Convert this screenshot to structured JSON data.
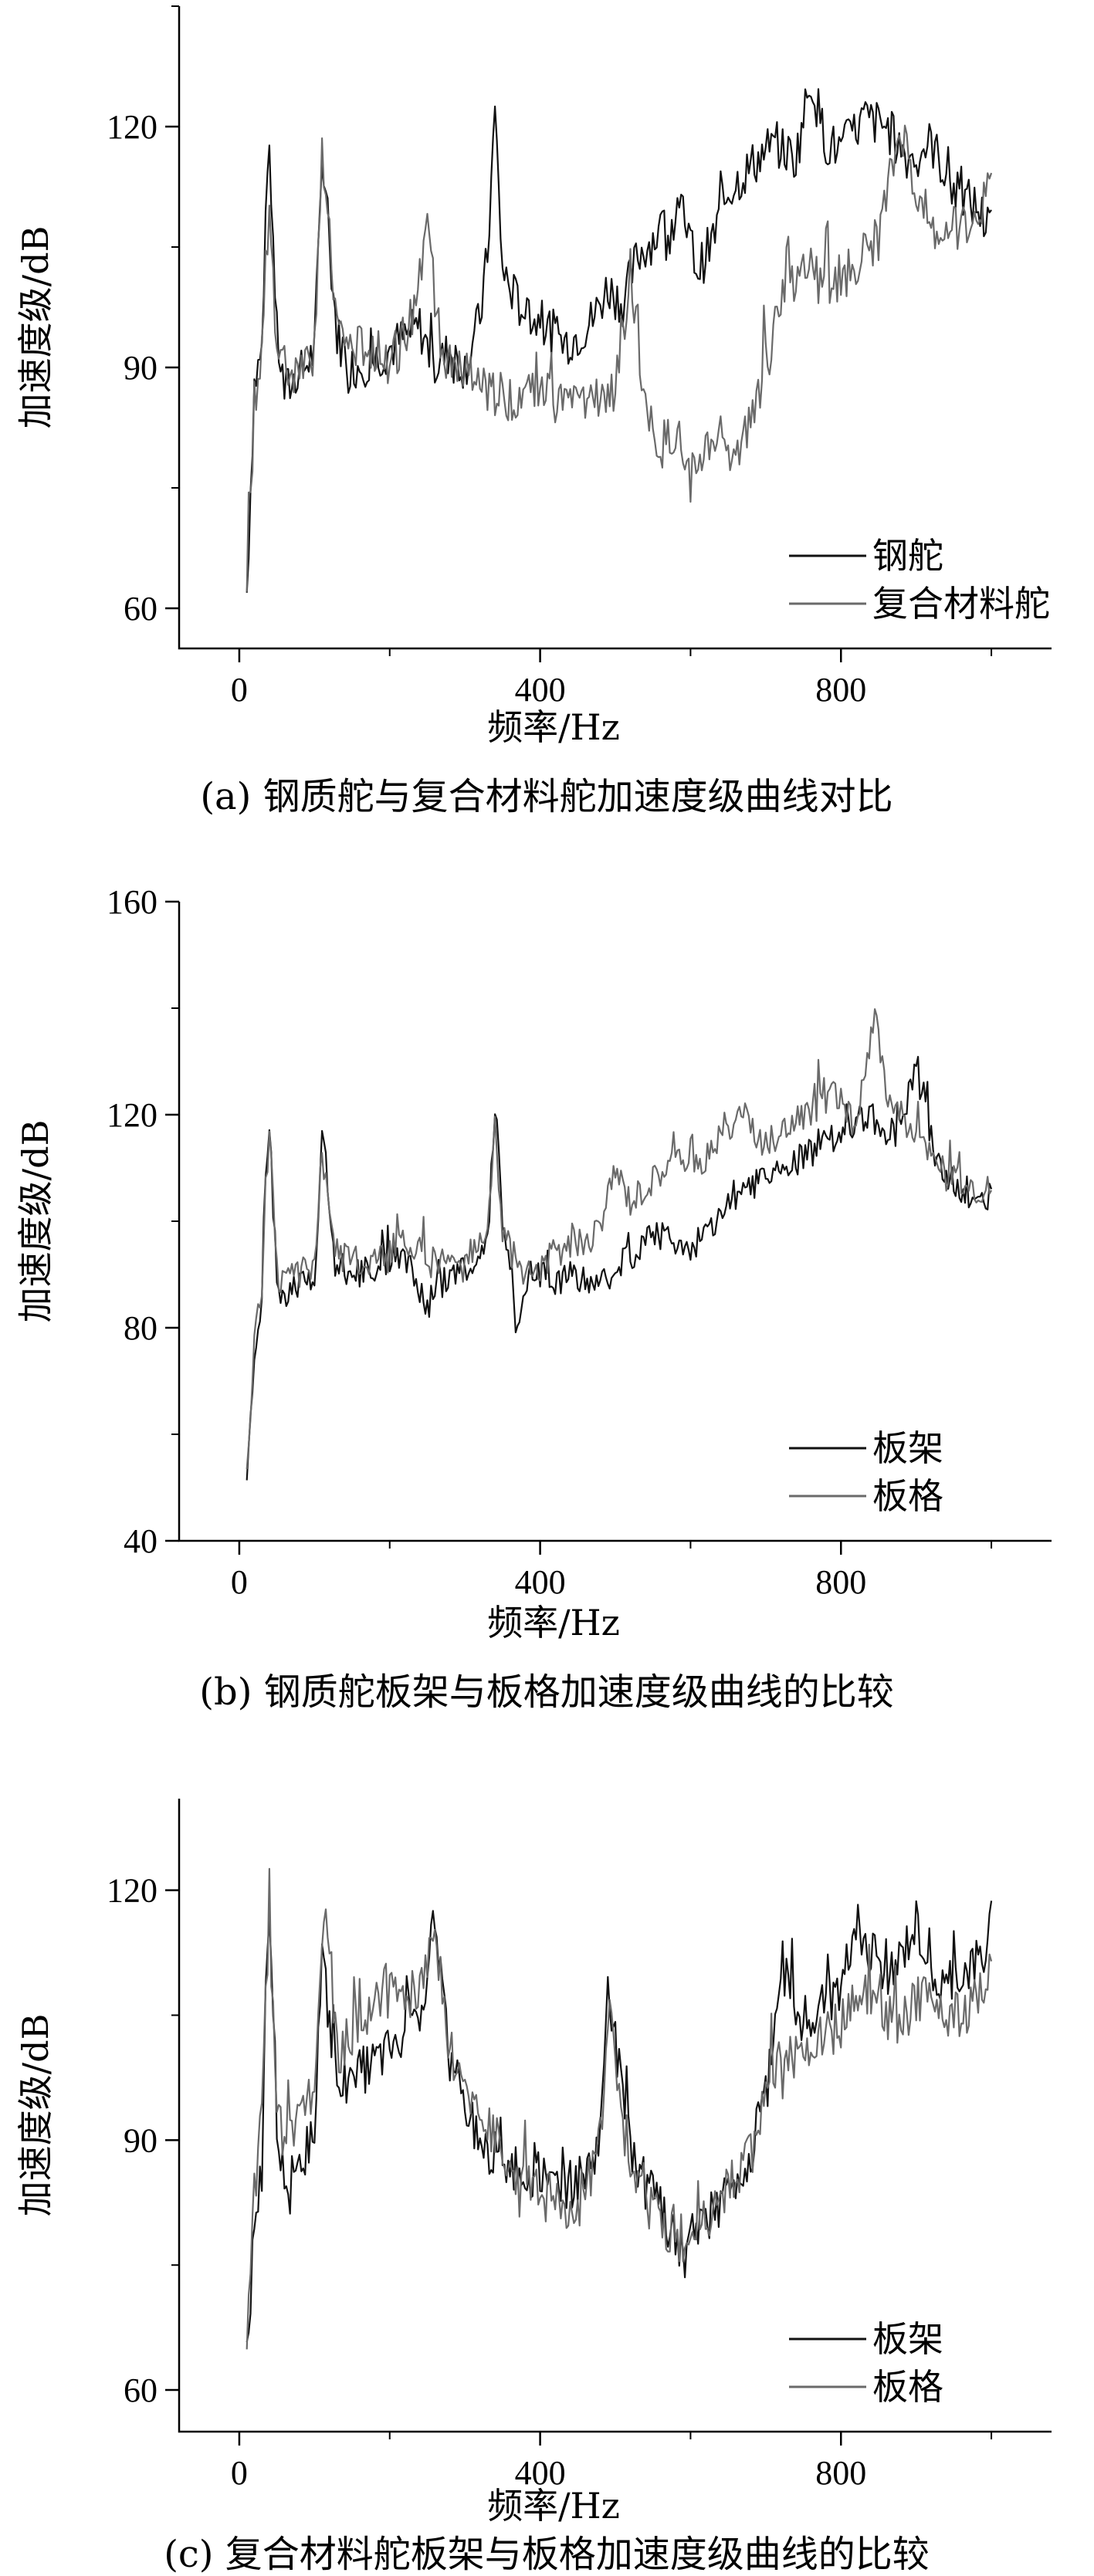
{
  "chart_data": [
    {
      "type": "line",
      "caption": "(a) 钢质舵与复合材料舵加速度级曲线对比",
      "xlabel": "频率/Hz",
      "ylabel": "加速度级/dB",
      "xlim": [
        -80,
        1080
      ],
      "ylim": [
        55,
        135
      ],
      "xticks": [
        0,
        400,
        800
      ],
      "yticks": [
        60,
        90,
        120
      ],
      "grid": false,
      "legend_position": "bottom-right",
      "series": [
        {
          "name": "钢舵",
          "color": "#111111",
          "x": [
            10,
            20,
            30,
            35,
            40,
            50,
            60,
            80,
            100,
            110,
            130,
            150,
            180,
            210,
            240,
            260,
            280,
            300,
            320,
            330,
            340,
            350,
            370,
            390,
            410,
            430,
            450,
            470,
            490,
            510,
            530,
            560,
            590,
            610,
            630,
            650,
            680,
            710,
            740,
            760,
            780,
            800,
            830,
            860,
            890,
            920,
            950,
            980,
            1000
          ],
          "y": [
            62,
            88,
            92,
            105,
            118,
            94,
            87,
            89,
            92,
            116,
            94,
            90,
            91,
            93,
            95,
            90,
            92,
            90,
            96,
            104,
            122,
            102,
            98,
            96,
            95,
            93,
            94,
            96,
            100,
            98,
            104,
            107,
            109,
            102,
            106,
            112,
            115,
            118,
            116,
            126,
            118,
            117,
            121,
            120,
            116,
            118,
            112,
            110,
            107
          ]
        },
        {
          "name": "复合材料舵",
          "color": "#6a6a6a",
          "x": [
            10,
            20,
            30,
            35,
            40,
            50,
            60,
            80,
            100,
            110,
            130,
            150,
            180,
            210,
            230,
            250,
            265,
            280,
            300,
            330,
            360,
            390,
            420,
            450,
            480,
            500,
            520,
            540,
            560,
            580,
            600,
            620,
            640,
            660,
            690,
            720,
            750,
            780,
            810,
            830,
            850,
            880,
            910,
            940,
            970,
            1000
          ],
          "y": [
            65,
            86,
            90,
            104,
            112,
            92,
            90,
            88,
            92,
            116,
            95,
            92,
            93,
            92,
            96,
            108,
            95,
            90,
            89,
            87,
            86,
            88,
            86,
            85,
            86,
            87,
            102,
            84,
            80,
            82,
            76,
            80,
            82,
            79,
            86,
            98,
            103,
            100,
            102,
            104,
            106,
            120,
            108,
            107,
            108,
            112
          ]
        }
      ]
    },
    {
      "type": "line",
      "caption": "(b) 钢质舵板架与板格加速度级曲线的比较",
      "xlabel": "频率/Hz",
      "ylabel": "加速度级/dB",
      "xlim": [
        -80,
        1080
      ],
      "ylim": [
        40,
        160
      ],
      "xticks": [
        0,
        400,
        800
      ],
      "yticks": [
        40,
        80,
        120,
        160
      ],
      "grid": false,
      "legend_position": "bottom-right",
      "series": [
        {
          "name": "板架",
          "color": "#111111",
          "x": [
            10,
            20,
            30,
            35,
            40,
            50,
            60,
            80,
            100,
            110,
            130,
            160,
            190,
            220,
            250,
            280,
            310,
            330,
            340,
            350,
            360,
            370,
            390,
            420,
            450,
            480,
            510,
            540,
            570,
            600,
            630,
            660,
            690,
            720,
            750,
            780,
            810,
            840,
            870,
            900,
            930,
            960,
            1000
          ],
          "y": [
            50,
            74,
            86,
            110,
            118,
            88,
            86,
            88,
            90,
            116,
            92,
            90,
            92,
            94,
            84,
            90,
            92,
            95,
            122,
            100,
            94,
            78,
            92,
            88,
            90,
            88,
            92,
            96,
            98,
            94,
            100,
            104,
            108,
            110,
            112,
            115,
            118,
            120,
            116,
            128,
            110,
            106,
            104
          ]
        },
        {
          "name": "板格",
          "color": "#6a6a6a",
          "x": [
            10,
            20,
            30,
            35,
            40,
            50,
            60,
            80,
            100,
            110,
            130,
            160,
            190,
            220,
            250,
            280,
            310,
            330,
            340,
            350,
            370,
            390,
            420,
            450,
            480,
            500,
            520,
            550,
            580,
            610,
            640,
            670,
            700,
            730,
            760,
            790,
            820,
            845,
            860,
            890,
            920,
            950,
            980,
            1000
          ],
          "y": [
            55,
            76,
            88,
            108,
            116,
            90,
            88,
            90,
            92,
            112,
            94,
            92,
            94,
            96,
            92,
            92,
            94,
            96,
            118,
            98,
            92,
            90,
            94,
            96,
            98,
            110,
            104,
            108,
            112,
            110,
            116,
            120,
            114,
            118,
            120,
            124,
            118,
            140,
            124,
            118,
            112,
            108,
            104,
            106
          ]
        }
      ]
    },
    {
      "type": "line",
      "caption": "(c) 复合材料舵板架与板格加速度级曲线的比较",
      "xlabel": "频率/Hz",
      "ylabel": "加速度级/dB",
      "xlim": [
        -80,
        1080
      ],
      "ylim": [
        55,
        131
      ],
      "xticks": [
        0,
        400,
        800
      ],
      "yticks": [
        60,
        90,
        120
      ],
      "grid": false,
      "legend_position": "bottom-right",
      "series": [
        {
          "name": "板架",
          "color": "#111111",
          "x": [
            10,
            20,
            30,
            35,
            40,
            50,
            60,
            80,
            100,
            110,
            130,
            160,
            190,
            220,
            250,
            260,
            280,
            310,
            340,
            370,
            400,
            430,
            460,
            480,
            490,
            510,
            530,
            560,
            590,
            620,
            650,
            680,
            710,
            720,
            740,
            770,
            800,
            820,
            840,
            870,
            900,
            930,
            960,
            990,
            1000
          ],
          "y": [
            63,
            80,
            86,
            110,
            116,
            90,
            86,
            86,
            92,
            112,
            96,
            98,
            100,
            102,
            108,
            118,
            100,
            92,
            88,
            86,
            86,
            84,
            86,
            90,
            110,
            94,
            86,
            82,
            76,
            80,
            84,
            88,
            100,
            112,
            104,
            106,
            108,
            116,
            112,
            110,
            116,
            108,
            110,
            112,
            116
          ]
        },
        {
          "name": "板格",
          "color": "#6a6a6a",
          "x": [
            10,
            20,
            30,
            35,
            40,
            50,
            60,
            80,
            100,
            115,
            130,
            160,
            190,
            220,
            250,
            260,
            280,
            310,
            340,
            370,
            400,
            430,
            460,
            480,
            490,
            510,
            530,
            560,
            590,
            620,
            650,
            680,
            710,
            740,
            770,
            800,
            820,
            850,
            880,
            910,
            940,
            970,
            1000
          ],
          "y": [
            65,
            84,
            92,
            108,
            114,
            94,
            90,
            92,
            96,
            120,
            100,
            104,
            108,
            106,
            110,
            116,
            100,
            94,
            90,
            86,
            84,
            82,
            84,
            90,
            106,
            92,
            84,
            80,
            78,
            80,
            84,
            88,
            98,
            100,
            102,
            104,
            108,
            106,
            104,
            108,
            104,
            106,
            110
          ]
        }
      ]
    }
  ]
}
